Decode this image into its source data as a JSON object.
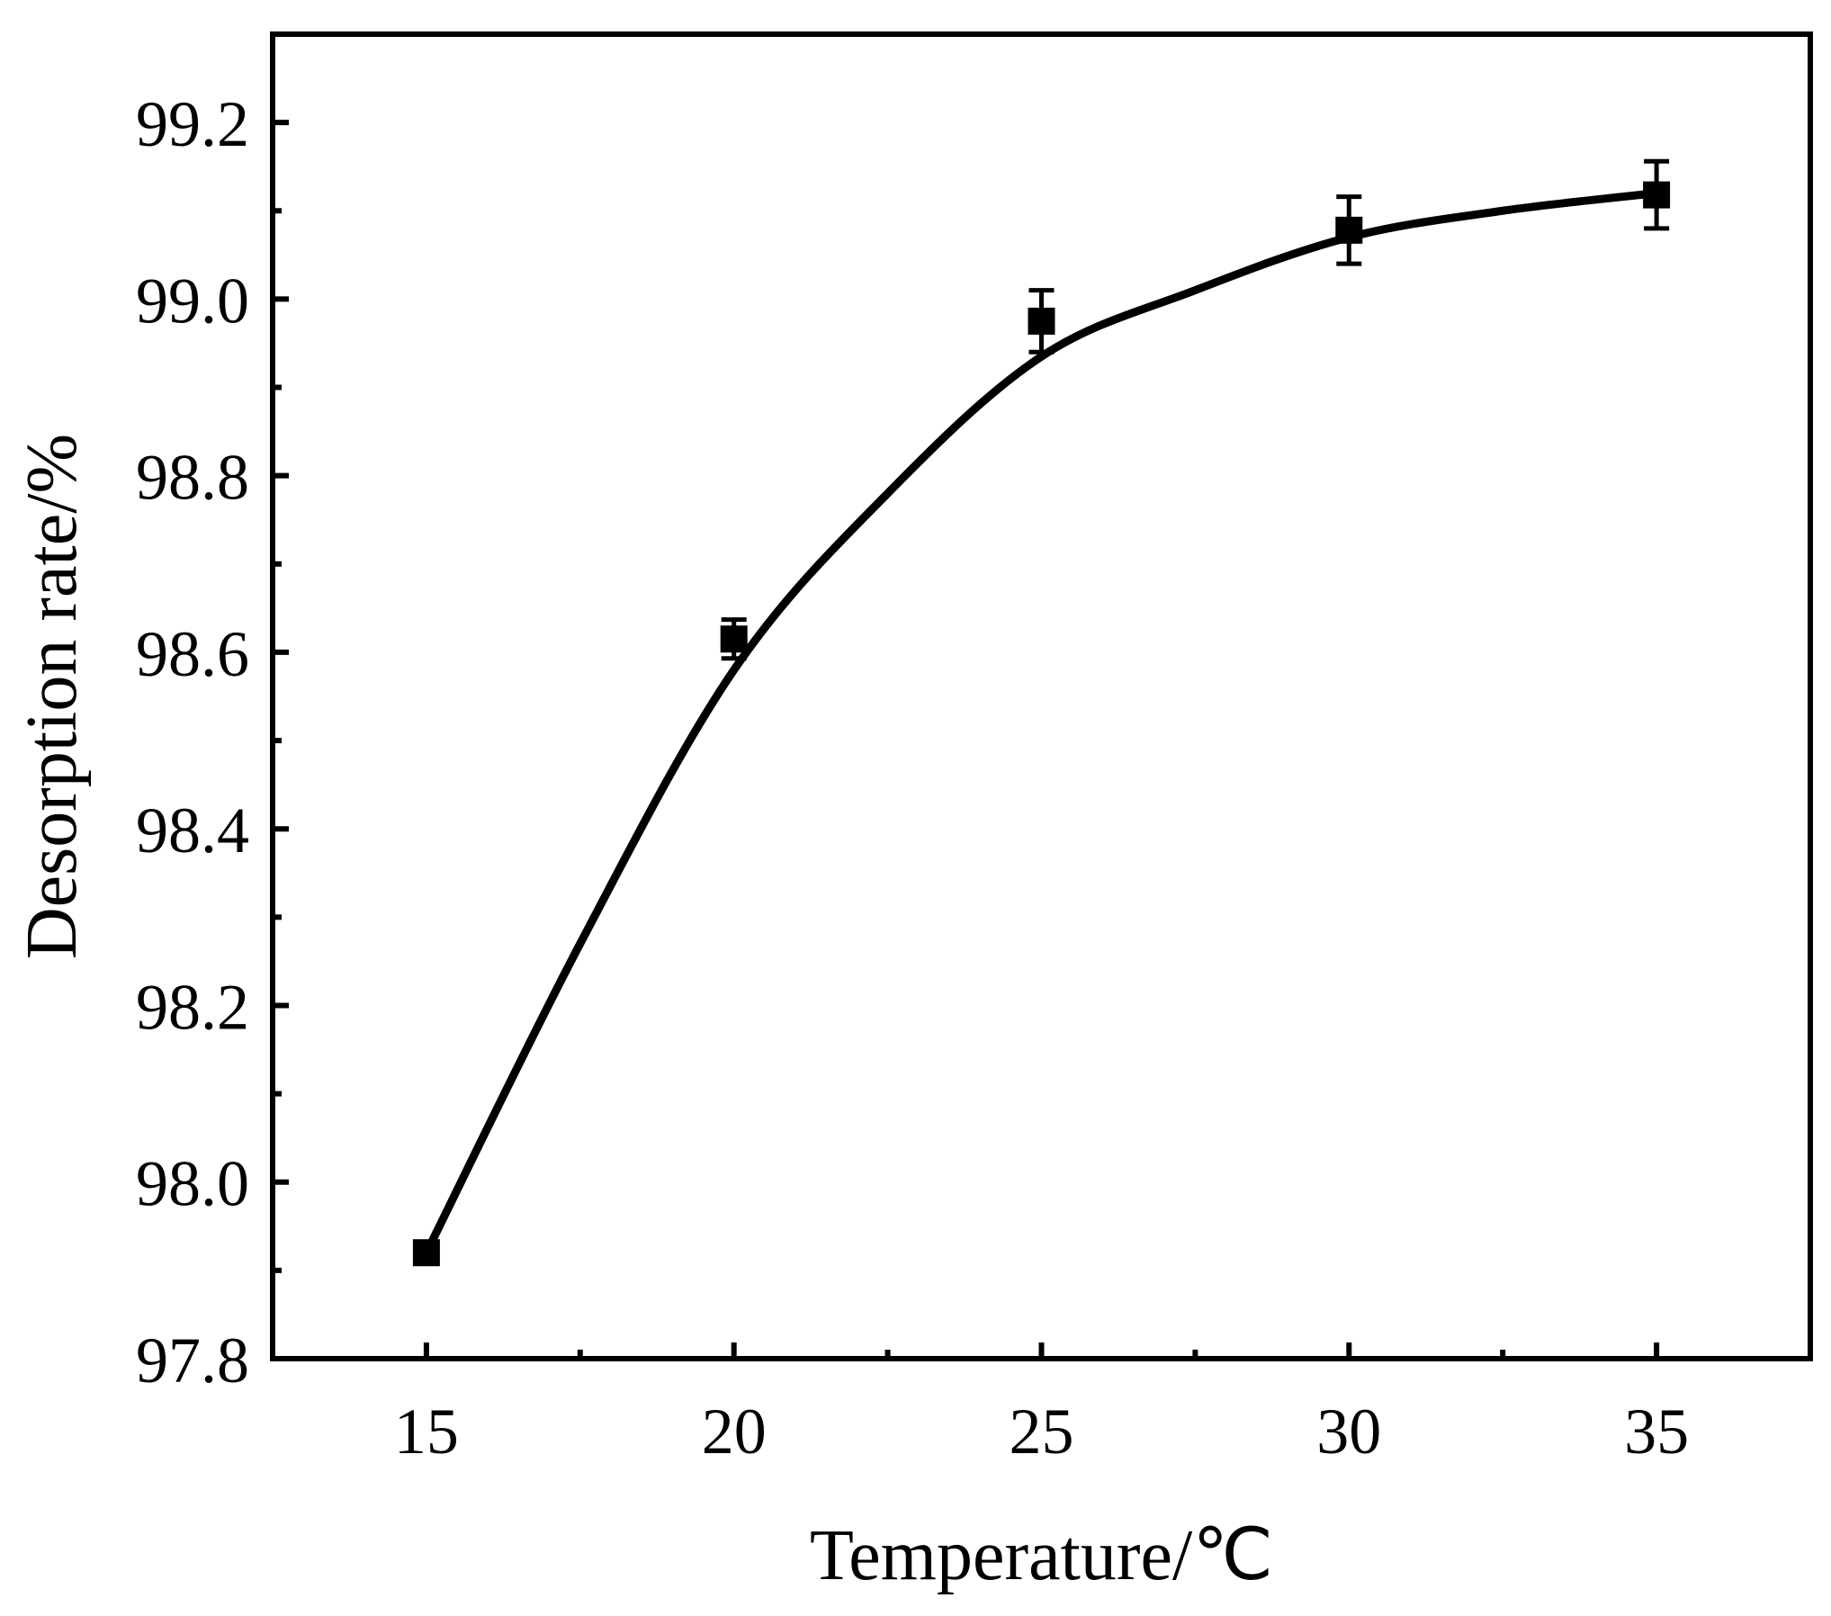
{
  "chart_data": {
    "type": "scatter",
    "xlabel": "Temperature/℃",
    "ylabel": "Desorption rate/%",
    "xlim": [
      12.5,
      37.5
    ],
    "ylim": [
      97.8,
      99.3
    ],
    "x_ticks": [
      "15",
      "20",
      "25",
      "30",
      "35"
    ],
    "y_ticks": [
      "97.8",
      "98.0",
      "98.2",
      "98.4",
      "98.6",
      "98.8",
      "99.0",
      "99.2"
    ],
    "grid": false,
    "series": [
      {
        "marker": "filled-square",
        "x": [
          15,
          20,
          25,
          30,
          35
        ],
        "y": [
          97.92,
          98.615,
          98.975,
          99.078,
          99.118
        ],
        "yerr": [
          0.012,
          0.022,
          0.035,
          0.038,
          0.038
        ]
      }
    ],
    "fit_curve": {
      "style": "solid-line",
      "x": [
        15,
        17.5,
        20,
        22.5,
        25,
        27.5,
        30,
        32.5,
        35
      ],
      "y": [
        97.92,
        98.27,
        98.58,
        98.78,
        98.935,
        99.01,
        99.07,
        99.1,
        99.12
      ]
    },
    "colors": {
      "marker": "#000000",
      "line": "#000000",
      "axes": "#000000"
    }
  }
}
